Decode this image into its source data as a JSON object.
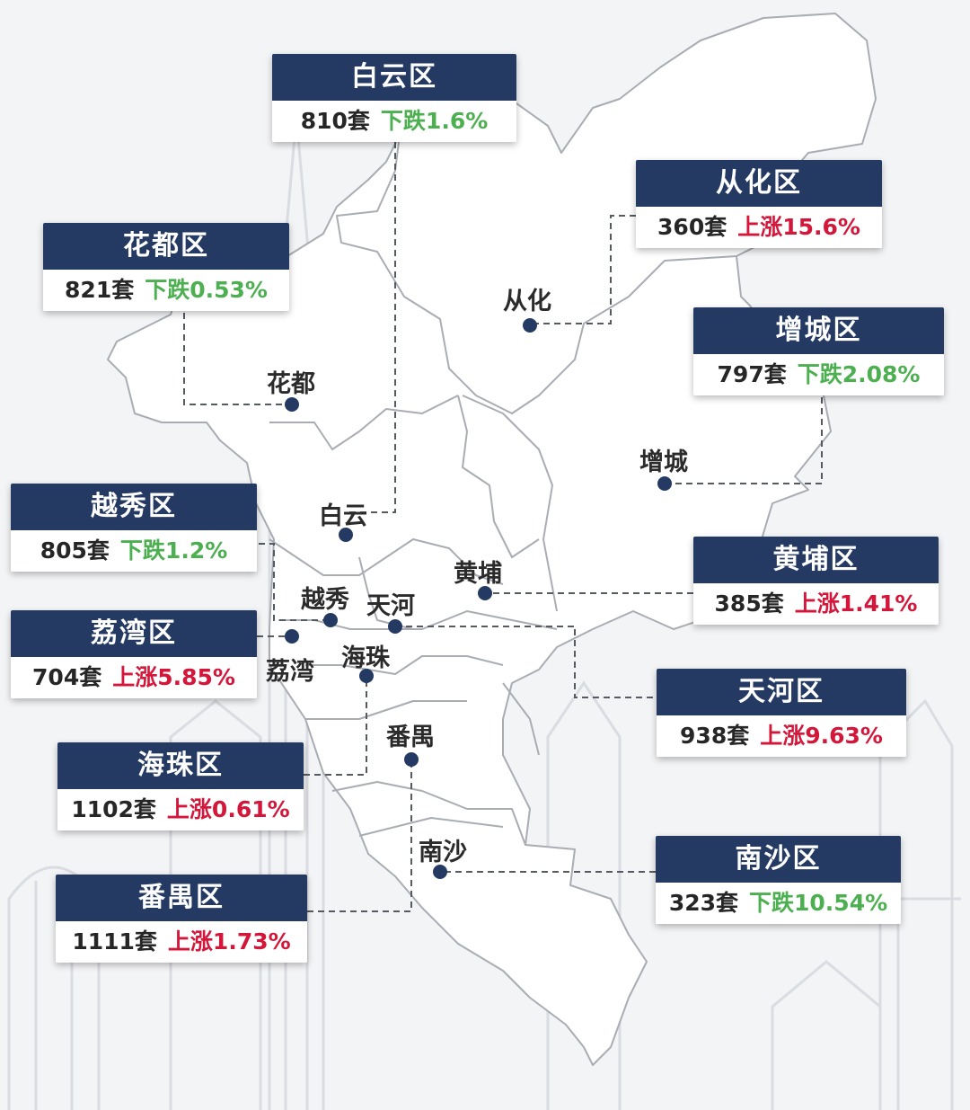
{
  "colors": {
    "card_header": "#253a63",
    "decrease": "#4caf50",
    "increase": "#d4163a",
    "marker": "#253a63",
    "map_fill": "#ffffff",
    "map_border": "#a9adb3"
  },
  "districts": [
    {
      "key": "baiyun",
      "card_title": "白云区",
      "units": "810套",
      "change": "下跌1.6%",
      "trend": "down",
      "map_name": "白云"
    },
    {
      "key": "conghua",
      "card_title": "从化区",
      "units": "360套",
      "change": "上涨15.6%",
      "trend": "up",
      "map_name": "从化"
    },
    {
      "key": "huadu",
      "card_title": "花都区",
      "units": "821套",
      "change": "下跌0.53%",
      "trend": "down",
      "map_name": "花都"
    },
    {
      "key": "zengcheng",
      "card_title": "增城区",
      "units": "797套",
      "change": "下跌2.08%",
      "trend": "down",
      "map_name": "增城"
    },
    {
      "key": "yuexiu",
      "card_title": "越秀区",
      "units": "805套",
      "change": "下跌1.2%",
      "trend": "down",
      "map_name": "越秀"
    },
    {
      "key": "huangpu",
      "card_title": "黄埔区",
      "units": "385套",
      "change": "上涨1.41%",
      "trend": "up",
      "map_name": "黄埔"
    },
    {
      "key": "liwan",
      "card_title": "荔湾区",
      "units": "704套",
      "change": "上涨5.85%",
      "trend": "up",
      "map_name": "荔湾"
    },
    {
      "key": "tianhe",
      "card_title": "天河区",
      "units": "938套",
      "change": "上涨9.63%",
      "trend": "up",
      "map_name": "天河"
    },
    {
      "key": "haizhu",
      "card_title": "海珠区",
      "units": "1102套",
      "change": "上涨0.61%",
      "trend": "up",
      "map_name": "海珠"
    },
    {
      "key": "nansha",
      "card_title": "南沙区",
      "units": "323套",
      "change": "下跌10.54%",
      "trend": "down",
      "map_name": "南沙"
    },
    {
      "key": "panyu",
      "card_title": "番禺区",
      "units": "1111套",
      "change": "上涨1.73%",
      "trend": "up",
      "map_name": "番禺"
    }
  ]
}
